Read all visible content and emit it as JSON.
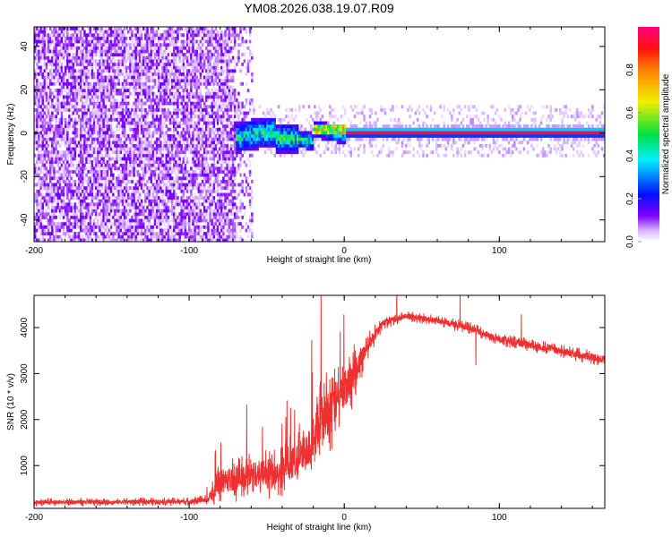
{
  "title": "YM08.2026.038.19.07.R09",
  "chart_data": [
    {
      "type": "heatmap",
      "title": "YM08.2026.038.19.07.R09",
      "xlabel": "Height of straight line (km)",
      "ylabel": "Frequency (Hz)",
      "xlim": [
        -200,
        168
      ],
      "ylim": [
        -50,
        49
      ],
      "xticks": [
        "-200",
        "-100",
        "0",
        "100"
      ],
      "xtick_values": [
        -200,
        -100,
        0,
        100
      ],
      "yticks": [
        "-40",
        "-20",
        "0",
        "20",
        "40"
      ],
      "ytick_values": [
        -40,
        -20,
        0,
        20,
        40
      ],
      "colorbar": {
        "label": "Normalized spectral amplitude",
        "range": [
          0,
          1
        ],
        "ticks": [
          "0.0",
          "0.2",
          "0.4",
          "0.6",
          "0.8"
        ],
        "tick_values": [
          0,
          0.2,
          0.4,
          0.6,
          0.8
        ]
      },
      "regions": [
        {
          "name": "broadband noise",
          "x_range": [
            -200,
            -70
          ],
          "freq_range": [
            -50,
            49
          ],
          "amplitude": 0.1
        },
        {
          "name": "transition",
          "x_range": [
            -70,
            0
          ],
          "freq_range": [
            -8,
            5
          ],
          "amplitude": 0.35
        },
        {
          "name": "narrow carrier",
          "x_range": [
            0,
            168
          ],
          "freq_range": [
            -1,
            1
          ],
          "amplitude": 0.95
        }
      ]
    },
    {
      "type": "line",
      "xlabel": "Height of straight line (km)",
      "ylabel": "SNR (10 * v/v)",
      "xlim": [
        -200,
        168
      ],
      "ylim": [
        70,
        4700
      ],
      "xticks": [
        "-200",
        "-100",
        "0",
        "100"
      ],
      "xtick_values": [
        -200,
        -100,
        0,
        100
      ],
      "yticks": [
        "1000",
        "2000",
        "3000",
        "4000"
      ],
      "ytick_values": [
        1000,
        2000,
        3000,
        4000
      ],
      "series": [
        {
          "name": "SNR",
          "color": "#f03030",
          "x": [
            -200,
            -150,
            -100,
            -88,
            -80,
            -60,
            -40,
            -25,
            -15,
            -5,
            5,
            15,
            25,
            40,
            60,
            80,
            100,
            130,
            168
          ],
          "y": [
            200,
            210,
            220,
            260,
            650,
            800,
            900,
            1300,
            2000,
            2400,
            2900,
            3600,
            4100,
            4250,
            4150,
            4000,
            3750,
            3550,
            3300
          ],
          "noise": [
            90,
            90,
            90,
            120,
            500,
            550,
            600,
            800,
            1000,
            900,
            700,
            300,
            150,
            120,
            120,
            130,
            140,
            150,
            160
          ]
        }
      ]
    }
  ]
}
